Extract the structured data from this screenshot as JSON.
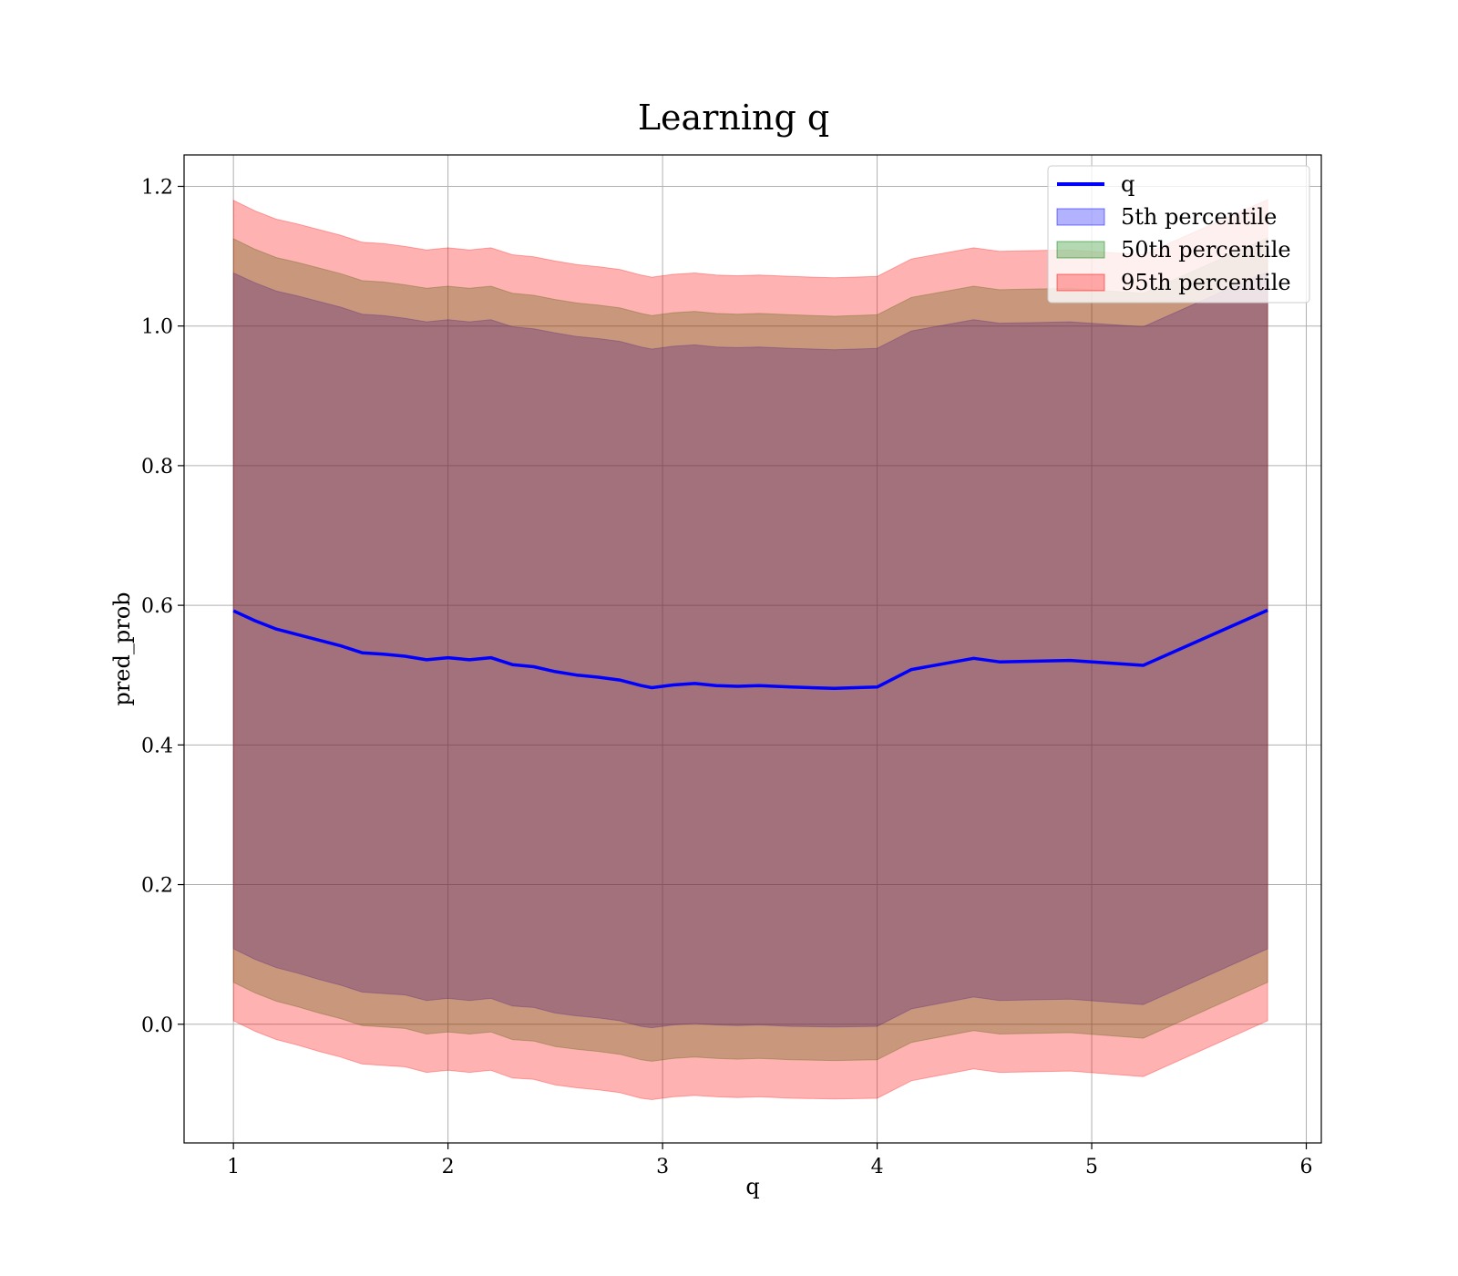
{
  "chart_data": {
    "type": "area",
    "title": "Learning q",
    "xlabel": "q",
    "ylabel": "pred_prob",
    "xlim": [
      0.77,
      6.07
    ],
    "ylim": [
      -0.17,
      1.245
    ],
    "xticks": [
      1,
      2,
      3,
      4,
      5,
      6
    ],
    "yticks": [
      0.0,
      0.2,
      0.4,
      0.6,
      0.8,
      1.0,
      1.2
    ],
    "xtick_labels": [
      "1",
      "2",
      "3",
      "4",
      "5",
      "6"
    ],
    "ytick_labels": [
      "0.0",
      "0.2",
      "0.4",
      "0.6",
      "0.8",
      "1.0",
      "1.2"
    ],
    "grid": true,
    "legend_position": "top-right",
    "x": [
      1.0,
      1.1,
      1.2,
      1.3,
      1.4,
      1.5,
      1.6,
      1.7,
      1.8,
      1.9,
      2.0,
      2.1,
      2.2,
      2.3,
      2.4,
      2.5,
      2.6,
      2.7,
      2.8,
      2.9,
      2.95,
      3.05,
      3.15,
      3.25,
      3.35,
      3.45,
      3.6,
      3.8,
      4.0,
      4.16,
      4.45,
      4.57,
      4.9,
      5.24,
      5.82
    ],
    "series": [
      {
        "name": "q",
        "kind": "line",
        "color": "#0000ff",
        "values": [
          0.592,
          0.578,
          0.566,
          0.558,
          0.55,
          0.542,
          0.532,
          0.53,
          0.527,
          0.522,
          0.525,
          0.522,
          0.525,
          0.515,
          0.512,
          0.505,
          0.5,
          0.497,
          0.493,
          0.485,
          0.482,
          0.486,
          0.488,
          0.485,
          0.484,
          0.485,
          0.483,
          0.481,
          0.483,
          0.508,
          0.524,
          0.519,
          0.521,
          0.514,
          0.593
        ]
      },
      {
        "name": "5th percentile",
        "kind": "band",
        "color": "#0000ff",
        "opacity": 0.3,
        "lower": [
          0.108,
          0.093,
          0.081,
          0.073,
          0.064,
          0.056,
          0.046,
          0.044,
          0.042,
          0.034,
          0.037,
          0.034,
          0.037,
          0.026,
          0.024,
          0.016,
          0.012,
          0.009,
          0.005,
          -0.003,
          -0.005,
          -0.001,
          0.001,
          -0.001,
          -0.002,
          -0.001,
          -0.003,
          -0.004,
          -0.003,
          0.022,
          0.039,
          0.034,
          0.036,
          0.028,
          0.108
        ],
        "upper": [
          1.076,
          1.062,
          1.05,
          1.043,
          1.035,
          1.027,
          1.017,
          1.015,
          1.011,
          1.006,
          1.009,
          1.006,
          1.009,
          0.999,
          0.996,
          0.99,
          0.985,
          0.982,
          0.978,
          0.97,
          0.967,
          0.971,
          0.973,
          0.97,
          0.969,
          0.97,
          0.968,
          0.966,
          0.968,
          0.993,
          1.009,
          1.004,
          1.006,
          0.999,
          1.078
        ]
      },
      {
        "name": "50th percentile",
        "kind": "band",
        "color": "#008000",
        "opacity": 0.3,
        "lower": [
          0.06,
          0.045,
          0.033,
          0.025,
          0.016,
          0.008,
          -0.002,
          -0.004,
          -0.006,
          -0.014,
          -0.011,
          -0.014,
          -0.011,
          -0.022,
          -0.024,
          -0.032,
          -0.036,
          -0.039,
          -0.043,
          -0.051,
          -0.053,
          -0.049,
          -0.047,
          -0.049,
          -0.05,
          -0.049,
          -0.051,
          -0.052,
          -0.051,
          -0.026,
          -0.009,
          -0.014,
          -0.012,
          -0.02,
          0.06
        ],
        "upper": [
          1.125,
          1.11,
          1.098,
          1.091,
          1.083,
          1.075,
          1.065,
          1.063,
          1.059,
          1.054,
          1.057,
          1.054,
          1.057,
          1.047,
          1.044,
          1.038,
          1.033,
          1.03,
          1.026,
          1.018,
          1.015,
          1.019,
          1.021,
          1.018,
          1.017,
          1.018,
          1.016,
          1.014,
          1.016,
          1.041,
          1.057,
          1.052,
          1.054,
          1.047,
          1.126
        ]
      },
      {
        "name": "95th percentile",
        "kind": "band",
        "color": "#ff0000",
        "opacity": 0.3,
        "lower": [
          0.005,
          -0.01,
          -0.022,
          -0.03,
          -0.039,
          -0.047,
          -0.057,
          -0.059,
          -0.061,
          -0.069,
          -0.066,
          -0.069,
          -0.066,
          -0.077,
          -0.079,
          -0.087,
          -0.091,
          -0.094,
          -0.098,
          -0.106,
          -0.108,
          -0.104,
          -0.102,
          -0.104,
          -0.105,
          -0.104,
          -0.106,
          -0.107,
          -0.106,
          -0.081,
          -0.064,
          -0.069,
          -0.067,
          -0.075,
          0.005
        ],
        "upper": [
          1.18,
          1.165,
          1.153,
          1.146,
          1.138,
          1.13,
          1.12,
          1.118,
          1.114,
          1.109,
          1.112,
          1.109,
          1.112,
          1.102,
          1.099,
          1.093,
          1.088,
          1.085,
          1.081,
          1.073,
          1.07,
          1.074,
          1.076,
          1.073,
          1.072,
          1.073,
          1.071,
          1.069,
          1.071,
          1.096,
          1.112,
          1.107,
          1.109,
          1.102,
          1.181
        ]
      }
    ]
  }
}
